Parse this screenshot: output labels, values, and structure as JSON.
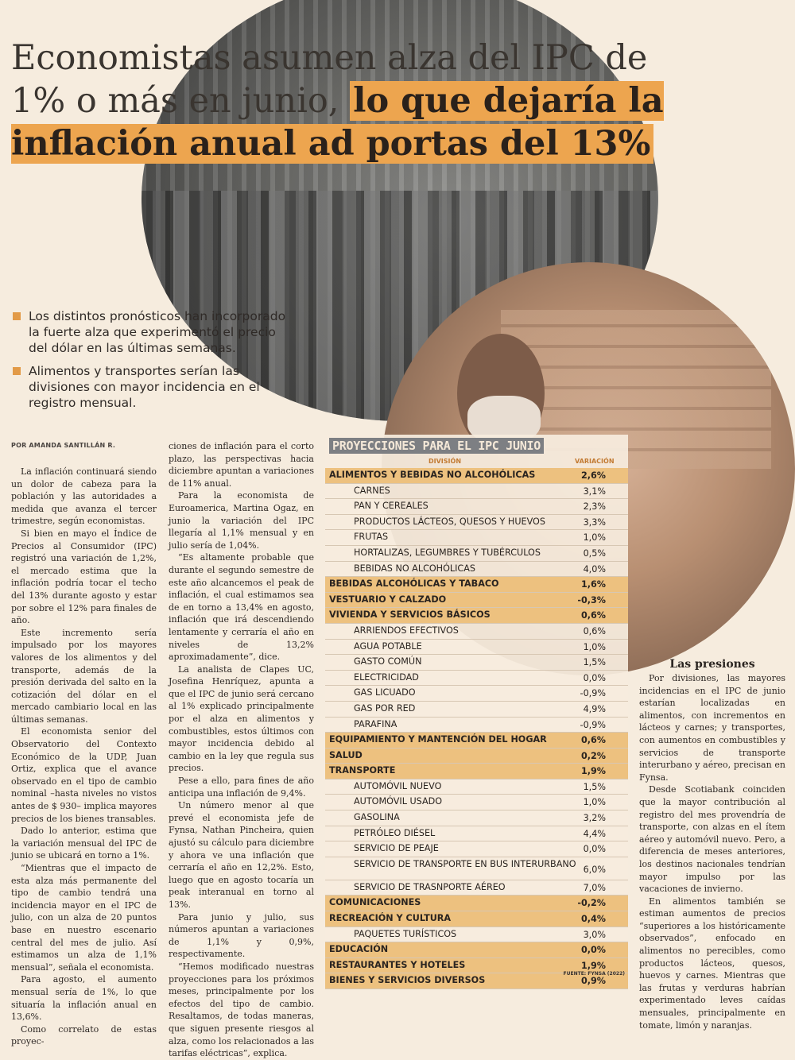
{
  "headline": {
    "plain": "Economistas asumen alza del IPC de 1% o más en junio,",
    "highlight": "lo que dejaría la inflación anual ad portas del 13%"
  },
  "bullets": [
    "Los distintos pronósticos han incorporado la fuerte alza que experimentó el precio del dólar en las últimas semanas.",
    "Alimentos y transportes serían las divisiones con mayor incidencia en el registro mensual."
  ],
  "byline": "POR AMANDA SANTILLÁN R.",
  "col1": [
    "La inflación continuará siendo un dolor de cabeza para la población y las autoridades a medida que avanza el tercer trimestre, según economistas.",
    "Si bien en mayo el Índice de Precios al Consumidor (IPC) registró una variación de 1,2%, el mercado estima que la inflación podría tocar el techo del 13% durante agosto y estar por sobre el 12% para finales de año.",
    "Este incremento sería impulsado por los mayores valores de los alimentos y del transporte, además de la presión derivada del salto en la cotización del dólar en el mercado cambiario local en las últimas semanas.",
    "El economista senior del Observatorio del Contexto Económico de la UDP, Juan Ortiz, explica que el avance observado en el tipo de cambio nominal –hasta niveles no vistos antes de $ 930– implica mayores precios de los bienes transables.",
    "Dado lo anterior, estima que la variación mensual del IPC de junio se ubicará en torno a 1%.",
    "“Mientras que el impacto de esta alza más permanente del tipo de cambio tendrá una incidencia mayor en el IPC de julio, con un alza de 20 puntos base en nuestro escenario central del mes de julio. Así estimamos un alza de 1,1% mensual”, señala el economista.",
    "Para agosto, el aumento mensual sería de 1%, lo que situaría la inflación anual en 13,6%.",
    "Como correlato de estas proyec-"
  ],
  "col2": [
    "ciones de inflación para el corto plazo, las perspectivas hacia diciembre apuntan a variaciones de 11% anual.",
    "Para la economista de Euroamerica, Martina Ogaz, en junio la variación del IPC llegaría al 1,1% mensual y en julio sería de 1,04%.",
    "“Es altamente probable que durante el segundo semestre de este año alcancemos el peak de inflación, el cual estimamos sea de en torno a 13,4% en agosto, inflación que irá descendiendo lentamente y cerraría el año en niveles de 13,2% aproximadamente”, dice.",
    "La analista de Clapes UC, Josefina Henríquez, apunta a que el IPC de junio será cercano al 1% explicado principalmente por el alza en alimentos y combustibles, estos últimos con mayor incidencia debido al cambio en la ley que regula sus precios.",
    "Pese a ello, para fines de año anticipa una inflación de 9,4%.",
    "Un número menor al que prevé el economista jefe de Fynsa, Nathan Pincheira, quien ajustó su cálculo para diciembre y ahora ve una inflación que cerraría el año en 12,2%. Esto, luego que en agosto tocaría un peak interanual en torno al 13%.",
    "Para junio y julio, sus números apuntan a variaciones de 1,1% y 0,9%, respectivamente.",
    "“Hemos modificado nuestras proyecciones para los próximos meses, principalmente por los efectos del tipo de cambio. Resaltamos, de todas maneras, que siguen presente riesgos al alza, como los relacionados a las tarifas eléctricas”, explica."
  ],
  "col3": {
    "subhead": "Las presiones",
    "paragraphs": [
      "Por divisiones, las mayores incidencias en el IPC de junio estarían localizadas en alimentos, con incrementos en lácteos y carnes; y transportes, con aumentos en combustibles y servicios de transporte interurbano y aéreo, precisan en Fynsa.",
      "Desde Scotiabank coinciden que la mayor contribución al registro del mes provendría de transporte, con alzas en el ítem aéreo y automóvil nuevo. Pero, a diferencia de meses anteriores, los destinos nacionales tendrían mayor impulso por las vacaciones de invierno.",
      "En alimentos también se estiman aumentos de precios “superiores a los históricamente observados”, enfocado en alimentos no perecibles, como productos lácteos, quesos, huevos y carnes. Mientras que las frutas y verduras habrían experimentado leves caídas mensuales, principalmente en tomate, limón y naranjas."
    ]
  },
  "table": {
    "title": "PROYECCIONES PARA EL IPC JUNIO",
    "col_division": "DIVISIÓN",
    "col_variacion": "VARIACIÓN",
    "rows": [
      {
        "label": "ALIMENTOS Y BEBIDAS NO ALCOHÓLICAS",
        "value": "2,6%",
        "kind": "cat"
      },
      {
        "label": "CARNES",
        "value": "3,1%",
        "kind": "sub"
      },
      {
        "label": "PAN Y CEREALES",
        "value": "2,3%",
        "kind": "sub"
      },
      {
        "label": "PRODUCTOS LÁCTEOS, QUESOS Y HUEVOS",
        "value": "3,3%",
        "kind": "sub"
      },
      {
        "label": "FRUTAS",
        "value": "1,0%",
        "kind": "sub"
      },
      {
        "label": "HORTALIZAS, LEGUMBRES Y TUBÉRCULOS",
        "value": "0,5%",
        "kind": "sub"
      },
      {
        "label": "BEBIDAS NO ALCOHÓLICAS",
        "value": "4,0%",
        "kind": "sub"
      },
      {
        "label": "BEBIDAS ALCOHÓLICAS Y TABACO",
        "value": "1,6%",
        "kind": "cat"
      },
      {
        "label": "VESTUARIO Y CALZADO",
        "value": "-0,3%",
        "kind": "cat"
      },
      {
        "label": "VIVIENDA Y SERVICIOS BÁSICOS",
        "value": "0,6%",
        "kind": "cat"
      },
      {
        "label": "ARRIENDOS EFECTIVOS",
        "value": "0,6%",
        "kind": "sub"
      },
      {
        "label": "AGUA POTABLE",
        "value": "1,0%",
        "kind": "sub"
      },
      {
        "label": "GASTO COMÚN",
        "value": "1,5%",
        "kind": "sub"
      },
      {
        "label": "ELECTRICIDAD",
        "value": "0,0%",
        "kind": "sub"
      },
      {
        "label": "GAS LICUADO",
        "value": "-0,9%",
        "kind": "sub"
      },
      {
        "label": "GAS POR RED",
        "value": "4,9%",
        "kind": "sub"
      },
      {
        "label": "PARAFINA",
        "value": "-0,9%",
        "kind": "sub"
      },
      {
        "label": "EQUIPAMIENTO Y MANTENCIÓN DEL HOGAR",
        "value": "0,6%",
        "kind": "cat"
      },
      {
        "label": "SALUD",
        "value": "0,2%",
        "kind": "cat"
      },
      {
        "label": "TRANSPORTE",
        "value": "1,9%",
        "kind": "cat"
      },
      {
        "label": "AUTOMÓVIL NUEVO",
        "value": "1,5%",
        "kind": "sub"
      },
      {
        "label": "AUTOMÓVIL USADO",
        "value": "1,0%",
        "kind": "sub"
      },
      {
        "label": "GASOLINA",
        "value": "3,2%",
        "kind": "sub"
      },
      {
        "label": "PETRÓLEO DIÉSEL",
        "value": "4,4%",
        "kind": "sub"
      },
      {
        "label": "SERVICIO DE PEAJE",
        "value": "0,0%",
        "kind": "sub"
      },
      {
        "label": "SERVICIO DE TRANSPORTE EN BUS INTERURBANO",
        "value": "6,0%",
        "kind": "sub tall"
      },
      {
        "label": "SERVICIO DE TRASNPORTE AÉREO",
        "value": "7,0%",
        "kind": "sub"
      },
      {
        "label": "COMUNICACIONES",
        "value": "-0,2%",
        "kind": "cat"
      },
      {
        "label": "RECREACIÓN Y CULTURA",
        "value": "0,4%",
        "kind": "cat"
      },
      {
        "label": "PAQUETES TURÍSTICOS",
        "value": "3,0%",
        "kind": "sub"
      },
      {
        "label": "EDUCACIÓN",
        "value": "0,0%",
        "kind": "cat"
      },
      {
        "label": "RESTAURANTES Y HOTELES",
        "value": "1,9%",
        "kind": "cat"
      },
      {
        "label": "BIENES Y SERVICIOS DIVERSOS",
        "value": "0,9%",
        "kind": "cat"
      }
    ],
    "source": "FUENTE: FYNSA (2022)"
  }
}
